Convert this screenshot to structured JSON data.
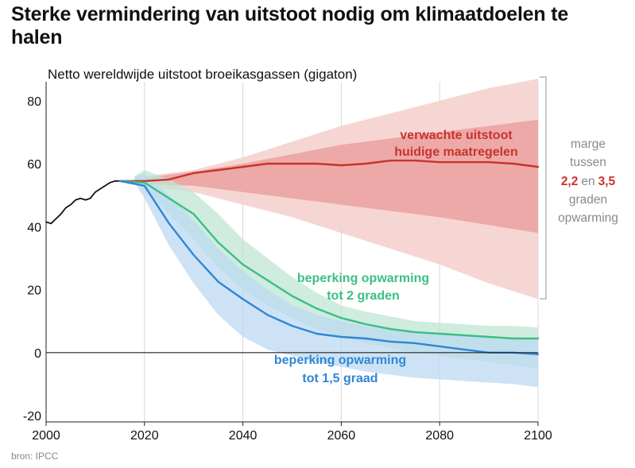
{
  "header": {
    "title": "Sterke vermindering van uitstoot nodig om klimaatdoelen te halen",
    "subtitle": "Netto wereldwijde uitstoot broeikasgassen (gigaton)"
  },
  "footer": {
    "source": "bron: IPCC"
  },
  "colors": {
    "history": "#111111",
    "current": "#c8332c",
    "two_degrees": "#3bbf86",
    "one_five": "#2f86d6",
    "current_band_outer": "#f4cfcb",
    "current_band_inner": "#ea9a98",
    "two_band": "#bfe6d4",
    "one_five_band": "#bcd9f1",
    "axis_line": "#222222",
    "grid": "#d9d9d9"
  },
  "annotations": {
    "current": [
      "verwachte uitstoot",
      "huidige maatregelen"
    ],
    "two_degrees": [
      "beperking opwarming",
      "tot 2 graden"
    ],
    "one_five": [
      "beperking opwarming",
      "tot 1,5 graad"
    ],
    "margin": {
      "line1": "marge",
      "line2": "tussen",
      "low": "2,2",
      "connector": "en",
      "high": "3,5",
      "line4": "graden",
      "line5": "opwarming"
    }
  },
  "chart_data": {
    "type": "line",
    "title": "Sterke vermindering van uitstoot nodig om klimaatdoelen te halen",
    "ylabel": "Netto wereldwijde uitstoot broeikasgassen (gigaton)",
    "xlabel": "",
    "xlim": [
      2000,
      2100
    ],
    "ylim": [
      -22,
      86
    ],
    "x_ticks": [
      2000,
      2020,
      2040,
      2060,
      2080,
      2100
    ],
    "x_tick_labels": [
      "2000",
      "2020",
      "2040",
      "2060",
      "2080",
      "2100"
    ],
    "y_ticks": [
      -20,
      0,
      20,
      40,
      60,
      80
    ],
    "y_tick_labels": [
      "-20",
      "0",
      "20",
      "40",
      "60",
      "80"
    ],
    "grid": "vertical",
    "series": [
      {
        "key": "history",
        "x": [
          2000,
          2001,
          2002,
          2003,
          2004,
          2005,
          2006,
          2007,
          2008,
          2009,
          2010,
          2011,
          2012,
          2013,
          2014,
          2015
        ],
        "values": [
          41.5,
          41,
          42.5,
          44,
          46,
          47,
          48.5,
          49,
          48.5,
          49,
          51,
          52,
          53,
          54,
          54.5,
          54.5
        ]
      },
      {
        "key": "current",
        "x": [
          2015,
          2020,
          2025,
          2030,
          2035,
          2040,
          2045,
          2050,
          2055,
          2060,
          2065,
          2070,
          2075,
          2080,
          2085,
          2090,
          2095,
          2100
        ],
        "values": [
          54.5,
          54.5,
          55,
          57,
          58,
          59,
          60,
          60,
          60,
          59.5,
          60,
          61,
          61,
          60.5,
          60.5,
          60.5,
          60,
          59
        ]
      },
      {
        "key": "two_degrees",
        "x": [
          2015,
          2020,
          2025,
          2030,
          2035,
          2040,
          2045,
          2050,
          2055,
          2060,
          2065,
          2070,
          2075,
          2080,
          2085,
          2090,
          2095,
          2100
        ],
        "values": [
          54.5,
          54,
          49,
          44,
          35,
          28,
          23,
          18,
          14,
          11,
          9,
          7.5,
          6.5,
          6,
          5.5,
          5,
          4.5,
          4.5
        ]
      },
      {
        "key": "one_five",
        "x": [
          2015,
          2020,
          2025,
          2030,
          2035,
          2040,
          2045,
          2050,
          2055,
          2060,
          2065,
          2070,
          2075,
          2080,
          2085,
          2090,
          2095,
          2100
        ],
        "values": [
          54.5,
          53,
          41,
          31,
          22.5,
          17,
          12,
          8.5,
          6,
          5,
          4.5,
          3.5,
          3,
          2,
          1,
          0,
          0,
          -0.5
        ]
      }
    ],
    "bands": [
      {
        "key": "current_outer",
        "x": [
          2020,
          2030,
          2040,
          2050,
          2060,
          2070,
          2080,
          2090,
          2100
        ],
        "upper": [
          56,
          58,
          62,
          67,
          72,
          76,
          80,
          84,
          87
        ],
        "lower": [
          53,
          51,
          47,
          43,
          38,
          33,
          28,
          22,
          17
        ]
      },
      {
        "key": "current_inner",
        "x": [
          2020,
          2030,
          2040,
          2050,
          2060,
          2070,
          2080,
          2090,
          2100
        ],
        "upper": [
          55.5,
          57.5,
          60,
          63,
          66,
          68,
          70,
          72,
          74
        ],
        "lower": [
          53.5,
          53,
          51,
          49,
          47,
          45,
          43,
          40.5,
          38
        ]
      },
      {
        "key": "two_degrees",
        "x": [
          2018,
          2020,
          2025,
          2030,
          2035,
          2040,
          2045,
          2050,
          2055,
          2060,
          2065,
          2070,
          2075,
          2080,
          2085,
          2090,
          2095,
          2100
        ],
        "upper": [
          56,
          58,
          55,
          51,
          44,
          36,
          30,
          24,
          19,
          15,
          13,
          11.5,
          10,
          9.5,
          9,
          8.5,
          8.5,
          8
        ],
        "lower": [
          54,
          52,
          44,
          36,
          27,
          20,
          15,
          11,
          7.5,
          5,
          3,
          1.5,
          0,
          -1,
          -2,
          -3,
          -4,
          -5
        ]
      },
      {
        "key": "one_five",
        "x": [
          2018,
          2020,
          2025,
          2030,
          2035,
          2040,
          2045,
          2050,
          2055,
          2060,
          2065,
          2070,
          2075,
          2080,
          2085,
          2090,
          2095,
          2100
        ],
        "upper": [
          56,
          57,
          50,
          42,
          33,
          26,
          20,
          15,
          12,
          10,
          8.5,
          7.5,
          6.5,
          6,
          5.5,
          5,
          4.5,
          4.5
        ],
        "lower": [
          54,
          49,
          34,
          22,
          12,
          5,
          1,
          -1,
          -3,
          -4.5,
          -6,
          -7,
          -8,
          -8.5,
          -9,
          -9.5,
          -10,
          -11
        ]
      }
    ],
    "annotation_text": [
      "verwachte uitstoot huidige maatregelen",
      "beperking opwarming tot 2 graden",
      "beperking opwarming tot 1,5 graad"
    ]
  }
}
